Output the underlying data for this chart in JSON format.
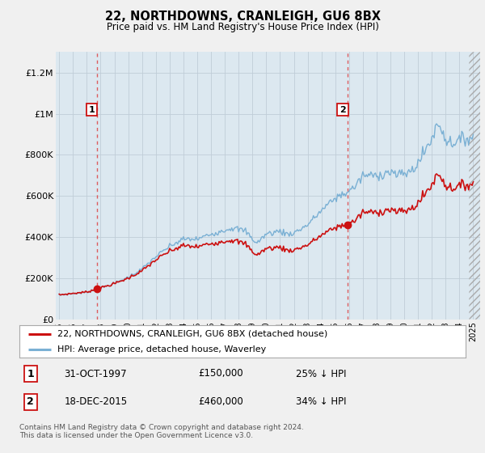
{
  "title": "22, NORTHDOWNS, CRANLEIGH, GU6 8BX",
  "subtitle": "Price paid vs. HM Land Registry's House Price Index (HPI)",
  "sale1_price": 150000,
  "sale1_text": "31-OCT-1997",
  "sale1_price_text": "£150,000",
  "sale1_pct": "25% ↓ HPI",
  "sale2_price": 460000,
  "sale2_text": "18-DEC-2015",
  "sale2_price_text": "£460,000",
  "sale2_pct": "34% ↓ HPI",
  "legend_line1": "22, NORTHDOWNS, CRANLEIGH, GU6 8BX (detached house)",
  "legend_line2": "HPI: Average price, detached house, Waverley",
  "footer": "Contains HM Land Registry data © Crown copyright and database right 2024.\nThis data is licensed under the Open Government Licence v3.0.",
  "price_line_color": "#cc1111",
  "hpi_line_color": "#7ab0d4",
  "dashed_line_color": "#dd4444",
  "marker_color": "#cc1111",
  "label_box_color": "#cc1111",
  "ylim": [
    0,
    1300000
  ],
  "yticks": [
    0,
    200000,
    400000,
    600000,
    800000,
    1000000,
    1200000
  ],
  "ytick_labels": [
    "£0",
    "£200K",
    "£400K",
    "£600K",
    "£800K",
    "£1M",
    "£1.2M"
  ],
  "background_color": "#f0f0f0",
  "plot_background": "#dce8f0",
  "grid_color": "#c0cdd8"
}
